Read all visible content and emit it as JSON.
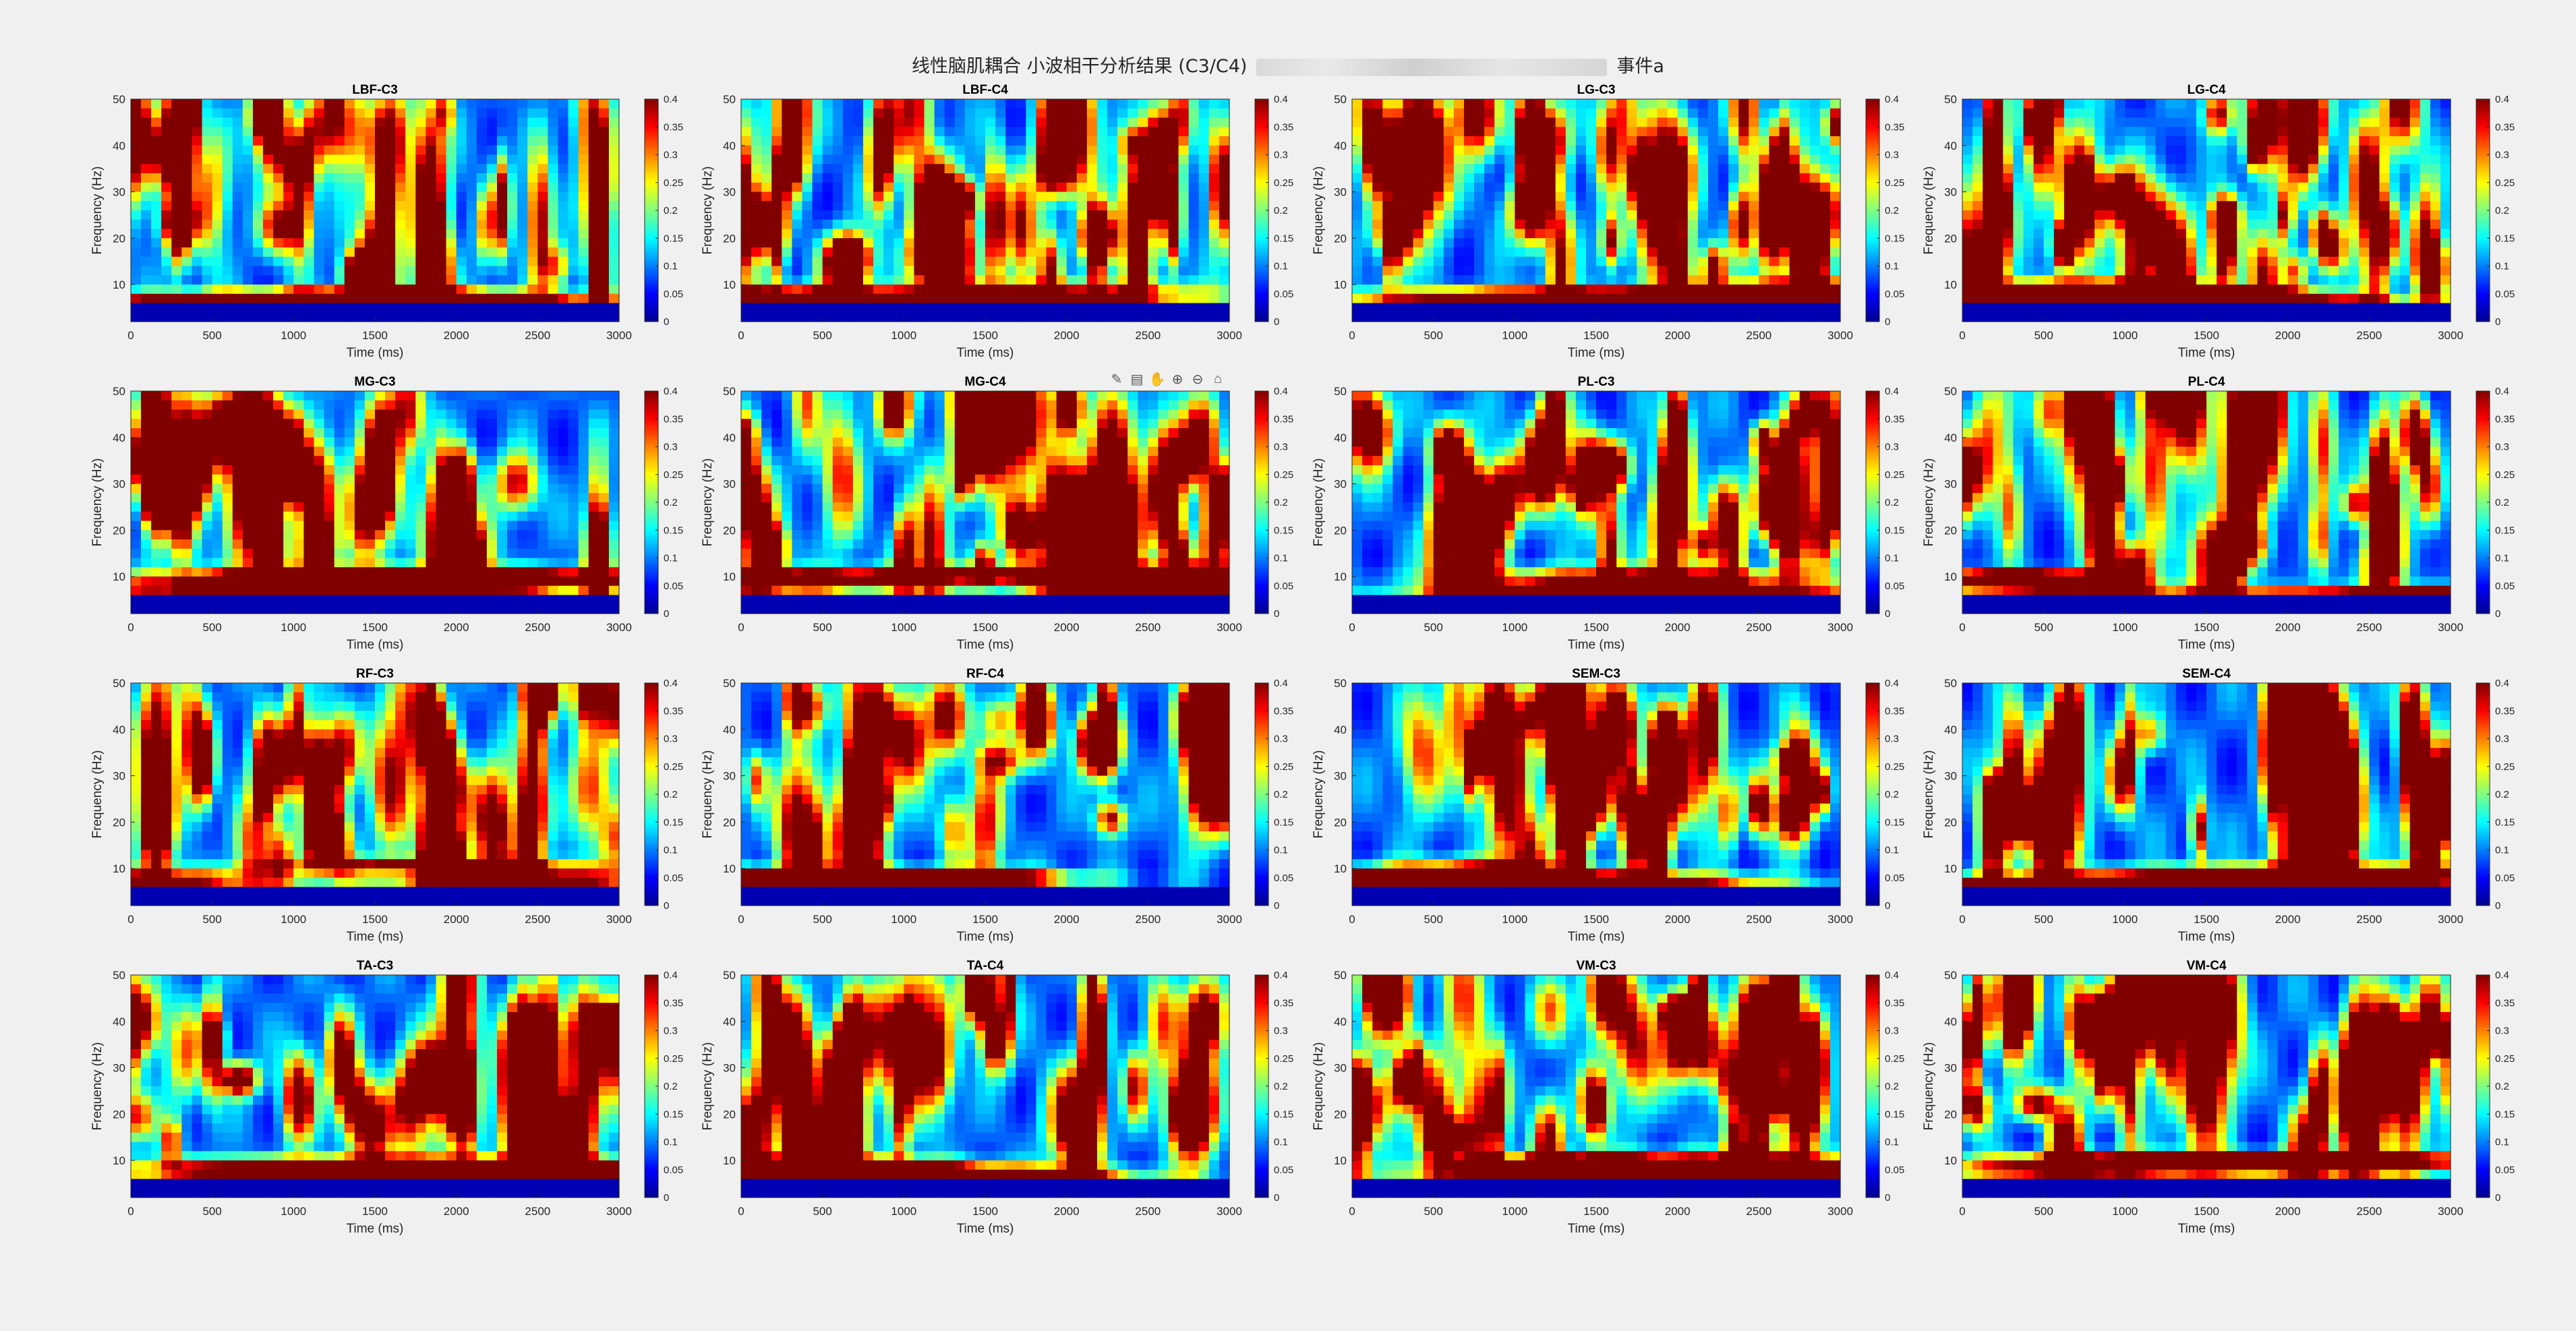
{
  "figure": {
    "title_before": "线性脑肌耦合 小波相干分析结果 (C3/C4)",
    "title_after": "事件a"
  },
  "toolbar": {
    "icons": [
      "brush-icon",
      "datatip-icon",
      "pan-icon",
      "zoom-in-icon",
      "zoom-out-icon",
      "home-icon"
    ]
  },
  "chart_data": {
    "type": "heatmap",
    "colormap": "jet",
    "xlabel": "Time (ms)",
    "ylabel": "Frequency (Hz)",
    "xlim": [
      0,
      3000
    ],
    "ylim": [
      2,
      50
    ],
    "xticks": [
      0,
      500,
      1000,
      1500,
      2000,
      2500,
      3000
    ],
    "yticks": [
      10,
      20,
      30,
      40,
      50
    ],
    "clim": [
      0,
      0.4
    ],
    "colorbar_ticks": [
      0,
      0.05,
      0.1,
      0.15,
      0.2,
      0.25,
      0.3,
      0.35,
      0.4
    ],
    "panels": [
      {
        "title": "LBF-C3"
      },
      {
        "title": "LBF-C4"
      },
      {
        "title": "LG-C3"
      },
      {
        "title": "LG-C4"
      },
      {
        "title": "MG-C3"
      },
      {
        "title": "MG-C4"
      },
      {
        "title": "PL-C3"
      },
      {
        "title": "PL-C4"
      },
      {
        "title": "RF-C3"
      },
      {
        "title": "RF-C4"
      },
      {
        "title": "SEM-C3"
      },
      {
        "title": "SEM-C4"
      },
      {
        "title": "TA-C3"
      },
      {
        "title": "TA-C4"
      },
      {
        "title": "VM-C3"
      },
      {
        "title": "VM-C4"
      }
    ]
  }
}
